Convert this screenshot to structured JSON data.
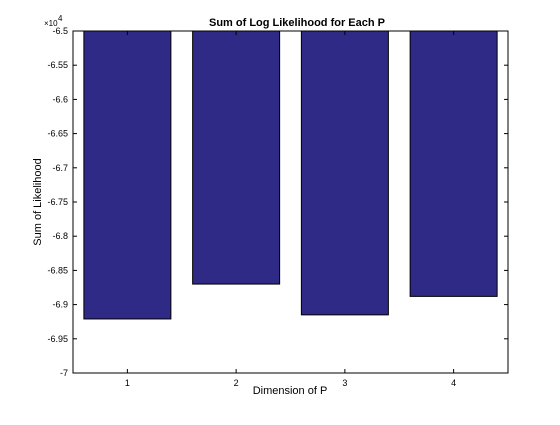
{
  "chart_data": {
    "type": "bar",
    "title": "Sum of Log Likelihood for Each P",
    "xlabel": "Dimension of P",
    "ylabel": "Sum of Likelihood",
    "categories": [
      "1",
      "2",
      "3",
      "4"
    ],
    "values": [
      -69210,
      -68700,
      -69150,
      -68880
    ],
    "ylim": [
      -70000,
      -65000
    ],
    "yticks": [
      -65000,
      -65500,
      -66000,
      -66500,
      -67000,
      -67500,
      -68000,
      -68500,
      -69000,
      -69500,
      -70000
    ],
    "ytick_labels": [
      "-6.5",
      "-6.55",
      "-6.6",
      "-6.65",
      "-6.7",
      "-6.75",
      "-6.8",
      "-6.85",
      "-6.9",
      "-6.95",
      "-7"
    ],
    "y_exponent_base": "×10",
    "y_exponent_power": "4",
    "bar_baseline": -65000,
    "grid": false,
    "legend": "none",
    "colors": {
      "bar_fill": "#2e2a86",
      "bar_edge": "#000000",
      "axes": "#000000"
    }
  }
}
